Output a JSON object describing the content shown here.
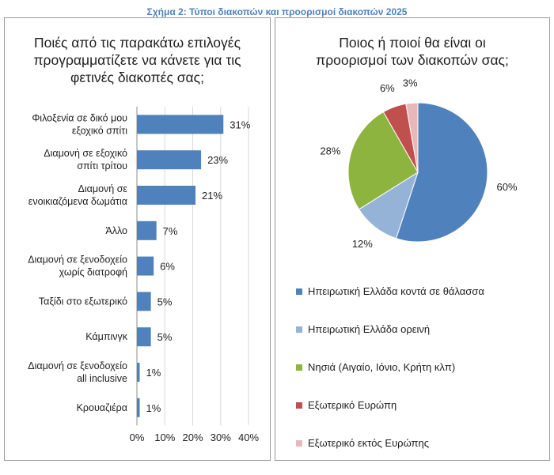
{
  "figure_title": "Σχήμα 2: Τύποι διακοπών και προορισμοί διακοπών 2025",
  "chart_data": [
    {
      "type": "bar",
      "orientation": "horizontal",
      "title": "Ποιές από τις παρακάτω επιλογές προγραμματίζετε να κάνετε για τις φετινές διακοπές σας;",
      "title_lines": [
        "Ποιές από τις παρακάτω επιλογές",
        "προγραμματίζετε να κάνετε για τις",
        "φετινές διακοπές σας;"
      ],
      "categories": [
        [
          "Φιλοξενία σε δικό μου",
          "εξοχικό σπίτι"
        ],
        [
          "Διαμονή σε εξοχικό",
          "σπίτι τρίτου"
        ],
        [
          "Διαμονή σε",
          "ενοικιαζόμενα δωμάτια"
        ],
        [
          "Άλλο"
        ],
        [
          "Διαμονή σε ξενοδοχείο",
          "χωρίς διατροφή"
        ],
        [
          "Ταξίδι στο εξωτερικό"
        ],
        [
          "Κάμπινγκ"
        ],
        [
          "Διαμονή σε ξενοδοχείο",
          "all inclusive"
        ],
        [
          "Κρουαζιέρα"
        ]
      ],
      "values": [
        31,
        23,
        21,
        7,
        6,
        5,
        5,
        1,
        1
      ],
      "value_labels": [
        "31%",
        "23%",
        "21%",
        "7%",
        "6%",
        "5%",
        "5%",
        "1%",
        "1%"
      ],
      "xlim": [
        0,
        40
      ],
      "xticks": [
        "0%",
        "10%",
        "20%",
        "30%",
        "40%"
      ],
      "grid": true,
      "bar_color": "#4f81bd"
    },
    {
      "type": "pie",
      "title": "Ποιος ή ποιοί θα είναι οι προορισμοί των διακοπών σας;",
      "title_lines": [
        "Ποιος ή ποιοί θα είναι οι",
        "προορισμοί των διακοπών σας;"
      ],
      "slices": [
        {
          "label": "Ηπειρωτική Ελλάδα κοντά σε θάλασσα",
          "value": 60,
          "value_label": "60%",
          "color": "#4f81bd"
        },
        {
          "label": "Ηπειρωτική Ελλάδα ορεινή",
          "value": 12,
          "value_label": "12%",
          "color": "#95b3d7"
        },
        {
          "label": "Νησιά (Αιγαίο, Ιόνιο, Κρήτη κλπ)",
          "value": 28,
          "value_label": "28%",
          "color": "#8db43e"
        },
        {
          "label": "Εξωτερικό Ευρώπη",
          "value": 6,
          "value_label": "6%",
          "color": "#c0504d"
        },
        {
          "label": "Εξωτερικό εκτός Ευρώπης",
          "value": 3,
          "value_label": "3%",
          "color": "#e6b9b8"
        }
      ],
      "legend_position": "bottom"
    }
  ]
}
